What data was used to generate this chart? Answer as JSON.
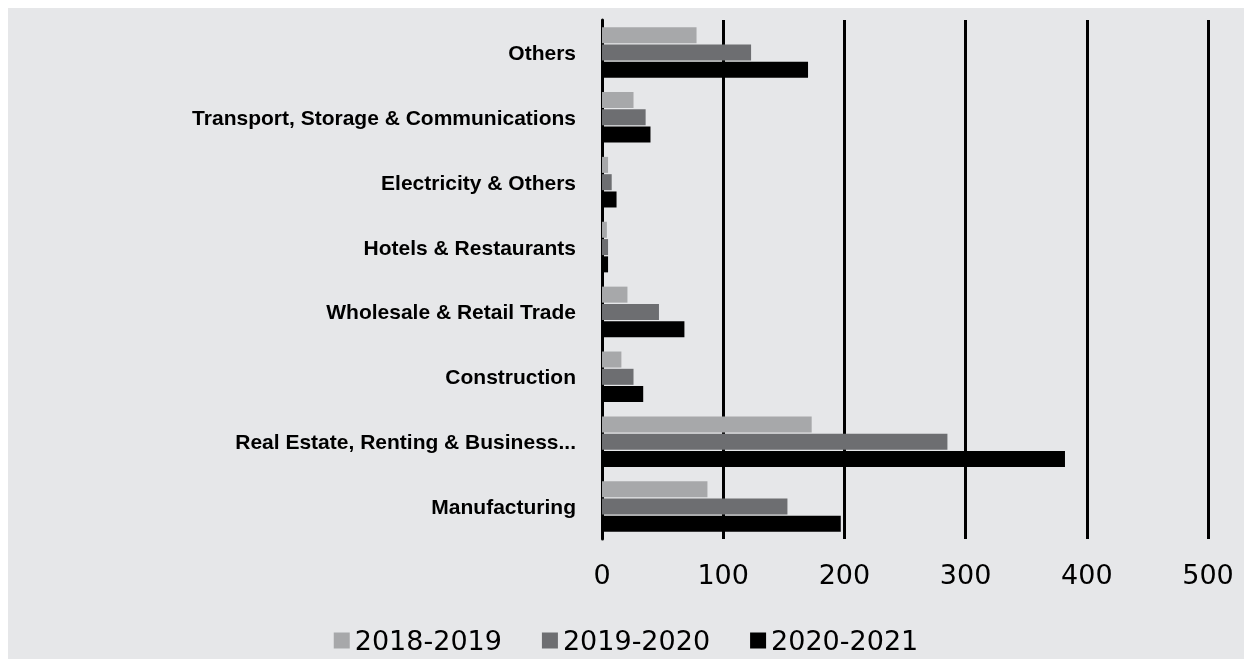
{
  "chart_data": {
    "type": "bar",
    "orientation": "horizontal",
    "categories": [
      "Others",
      "Transport, Storage & Communications",
      "Electricity & Others",
      "Hotels & Restaurants",
      "Wholesale & Retail Trade",
      "Construction",
      "Real Estate, Renting & Business...",
      "Manufacturing"
    ],
    "series": [
      {
        "name": "2018-2019",
        "color": "#a7a8aa",
        "values": [
          78,
          26,
          5,
          4,
          21,
          16,
          173,
          87
        ]
      },
      {
        "name": "2019-2020",
        "color": "#6d6e71",
        "values": [
          123,
          36,
          8,
          5,
          47,
          26,
          285,
          153
        ]
      },
      {
        "name": "2020-2021",
        "color": "#000000",
        "values": [
          170,
          40,
          12,
          5,
          68,
          34,
          382,
          197
        ]
      }
    ],
    "xlim": [
      0,
      500
    ],
    "xticks": [
      0,
      100,
      200,
      300,
      400,
      500
    ],
    "grid": "x",
    "legend": "bottom"
  }
}
